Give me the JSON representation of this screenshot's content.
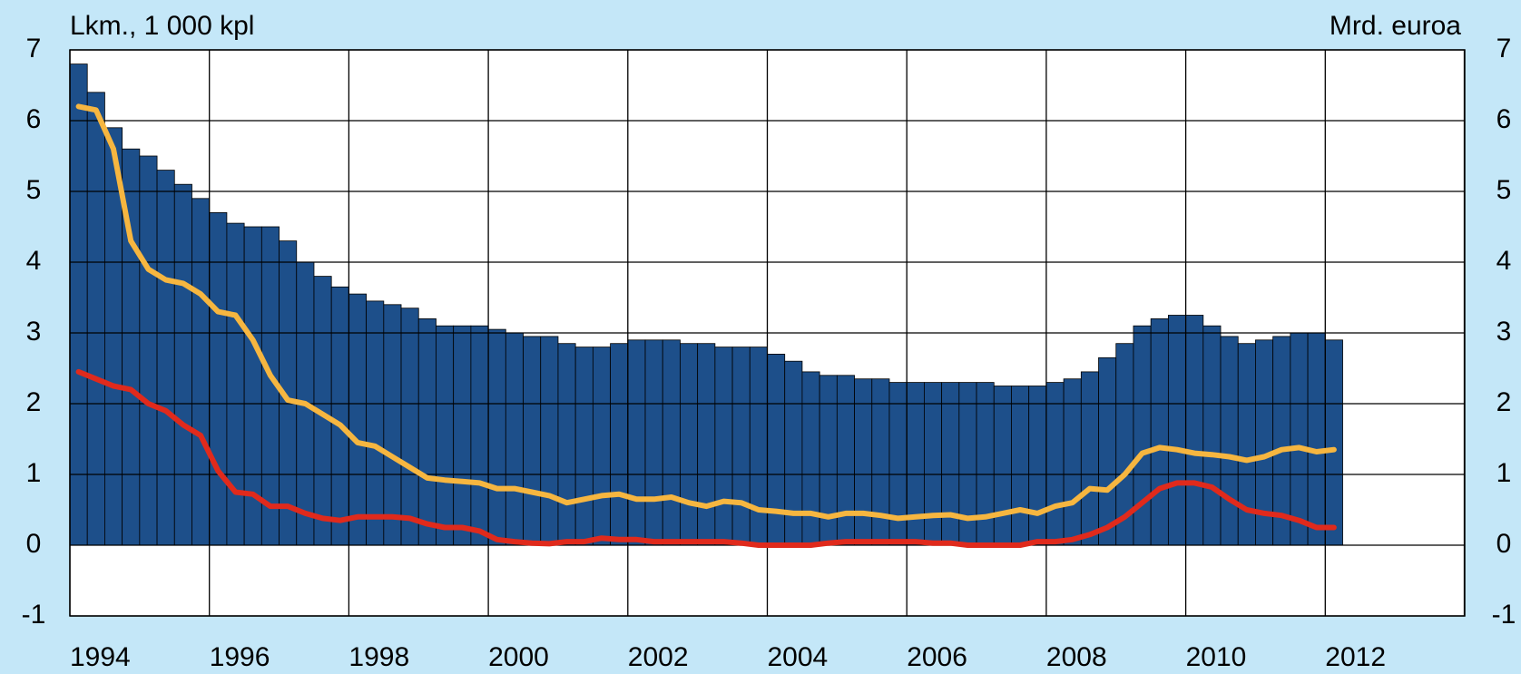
{
  "chart_data": {
    "type": "bar",
    "y_label": "Lkm., 1 000 kpl",
    "y2_label": "Mrd. euroa",
    "categories": [
      "1994",
      null,
      null,
      null,
      null,
      null,
      null,
      null,
      "1996",
      null,
      null,
      null,
      null,
      null,
      null,
      null,
      "1998",
      null,
      null,
      null,
      null,
      null,
      null,
      null,
      "2000",
      null,
      null,
      null,
      null,
      null,
      null,
      null,
      "2002",
      null,
      null,
      null,
      null,
      null,
      null,
      null,
      "2004",
      null,
      null,
      null,
      null,
      null,
      null,
      null,
      "2006",
      null,
      null,
      null,
      null,
      null,
      null,
      null,
      "2008",
      null,
      null,
      null,
      null,
      null,
      null,
      null,
      "2010",
      null,
      null,
      null,
      null,
      null,
      null,
      null,
      "2012"
    ],
    "series": [
      {
        "type": "bar",
        "color": "#1d4f8a",
        "values": [
          6.8,
          6.4,
          5.9,
          5.6,
          5.5,
          5.3,
          5.1,
          4.9,
          4.7,
          4.55,
          4.5,
          4.5,
          4.3,
          4.0,
          3.8,
          3.65,
          3.55,
          3.45,
          3.4,
          3.35,
          3.2,
          3.1,
          3.1,
          3.1,
          3.05,
          3.0,
          2.95,
          2.95,
          2.85,
          2.8,
          2.8,
          2.85,
          2.9,
          2.9,
          2.9,
          2.85,
          2.85,
          2.8,
          2.8,
          2.8,
          2.7,
          2.6,
          2.45,
          2.4,
          2.4,
          2.35,
          2.35,
          2.3,
          2.3,
          2.3,
          2.3,
          2.3,
          2.3,
          2.25,
          2.25,
          2.25,
          2.3,
          2.35,
          2.45,
          2.65,
          2.85,
          3.1,
          3.2,
          3.25,
          3.25,
          3.1,
          2.95,
          2.85,
          2.9,
          2.95,
          3.0,
          3.0,
          2.9
        ]
      },
      {
        "type": "line",
        "axis": "y2",
        "color": "#f6b640",
        "values": [
          6.2,
          6.15,
          5.6,
          4.3,
          3.9,
          3.75,
          3.7,
          3.55,
          3.3,
          3.25,
          2.9,
          2.4,
          2.05,
          2.0,
          1.85,
          1.7,
          1.45,
          1.4,
          1.25,
          1.1,
          0.95,
          0.92,
          0.9,
          0.88,
          0.8,
          0.8,
          0.75,
          0.7,
          0.6,
          0.65,
          0.7,
          0.72,
          0.65,
          0.65,
          0.68,
          0.6,
          0.55,
          0.62,
          0.6,
          0.5,
          0.48,
          0.45,
          0.45,
          0.4,
          0.45,
          0.45,
          0.42,
          0.38,
          0.4,
          0.42,
          0.43,
          0.38,
          0.4,
          0.45,
          0.5,
          0.45,
          0.55,
          0.6,
          0.8,
          0.78,
          1.0,
          1.3,
          1.38,
          1.35,
          1.3,
          1.28,
          1.25,
          1.2,
          1.25,
          1.35,
          1.38,
          1.32,
          1.35
        ]
      },
      {
        "type": "line",
        "axis": "y2",
        "color": "#e02a1c",
        "values": [
          2.45,
          2.35,
          2.25,
          2.2,
          2.0,
          1.9,
          1.7,
          1.55,
          1.05,
          0.75,
          0.72,
          0.55,
          0.55,
          0.45,
          0.38,
          0.35,
          0.4,
          0.4,
          0.4,
          0.38,
          0.3,
          0.25,
          0.25,
          0.2,
          0.08,
          0.05,
          0.03,
          0.02,
          0.05,
          0.05,
          0.1,
          0.08,
          0.08,
          0.05,
          0.05,
          0.05,
          0.05,
          0.05,
          0.03,
          0.0,
          0.0,
          0.0,
          0.0,
          0.03,
          0.05,
          0.05,
          0.05,
          0.05,
          0.05,
          0.03,
          0.03,
          0.0,
          0.0,
          0.0,
          0.0,
          0.05,
          0.05,
          0.08,
          0.15,
          0.25,
          0.4,
          0.6,
          0.8,
          0.88,
          0.88,
          0.82,
          0.65,
          0.5,
          0.45,
          0.42,
          0.35,
          0.25,
          0.25
        ]
      }
    ],
    "ylim": [
      -1,
      7
    ],
    "yticks": [
      -1,
      0,
      1,
      2,
      3,
      4,
      5,
      6,
      7
    ],
    "y2lim": [
      -1,
      7
    ],
    "y2ticks": [
      -1,
      0,
      1,
      2,
      3,
      4,
      5,
      6,
      7
    ],
    "grid": true
  }
}
